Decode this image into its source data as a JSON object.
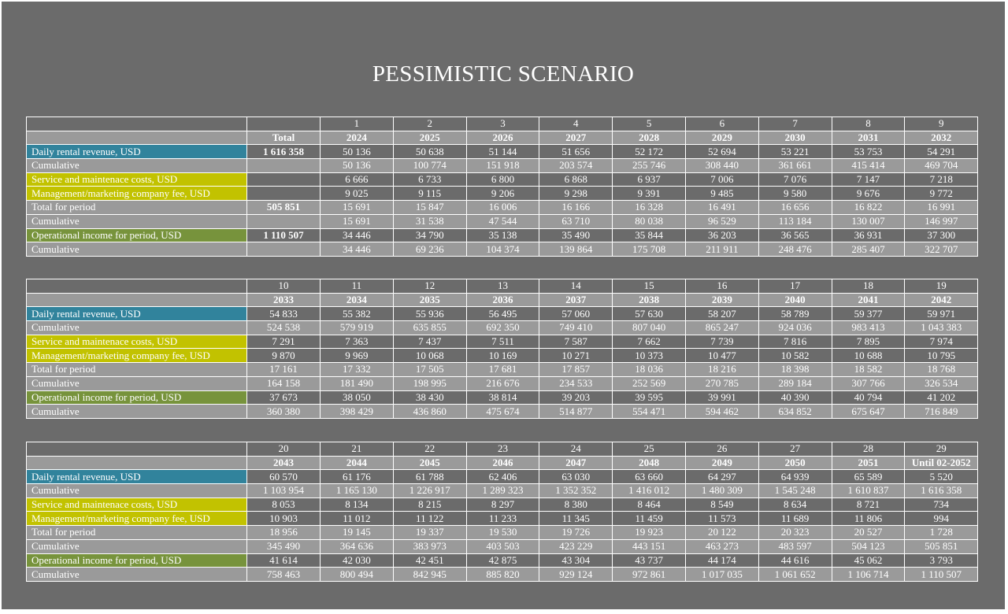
{
  "title": "PESSIMISTIC SCENARIO",
  "total_header": "Total",
  "row_labels": [
    "Daily rental revenue, USD",
    "Cumulative",
    "Service and maintenace costs, USD",
    "Management/marketing company fee, USD",
    "Total for period",
    "Cumulative",
    "Operational income for period, USD",
    "Cumulative"
  ],
  "totals": [
    "1 616 358",
    "",
    "",
    "",
    "505 851",
    "",
    "1 110 507",
    ""
  ],
  "colors": {
    "background": "#6b6b6b",
    "grey_row": "#9a9a9a",
    "blue": "#31839c",
    "yellow": "#c2c200",
    "green": "#77933c"
  },
  "tables": [
    {
      "numbers": [
        "1",
        "2",
        "3",
        "4",
        "5",
        "6",
        "7",
        "8",
        "9"
      ],
      "years": [
        "2024",
        "2025",
        "2026",
        "2027",
        "2028",
        "2029",
        "2030",
        "2031",
        "2032"
      ],
      "rows": [
        [
          "50 136",
          "50 638",
          "51 144",
          "51 656",
          "52 172",
          "52 694",
          "53 221",
          "53 753",
          "54 291"
        ],
        [
          "50 136",
          "100 774",
          "151 918",
          "203 574",
          "255 746",
          "308 440",
          "361 661",
          "415 414",
          "469 704"
        ],
        [
          "6 666",
          "6 733",
          "6 800",
          "6 868",
          "6 937",
          "7 006",
          "7 076",
          "7 147",
          "7 218"
        ],
        [
          "9 025",
          "9 115",
          "9 206",
          "9 298",
          "9 391",
          "9 485",
          "9 580",
          "9 676",
          "9 772"
        ],
        [
          "15 691",
          "15 847",
          "16 006",
          "16 166",
          "16 328",
          "16 491",
          "16 656",
          "16 822",
          "16 991"
        ],
        [
          "15 691",
          "31 538",
          "47 544",
          "63 710",
          "80 038",
          "96 529",
          "113 184",
          "130 007",
          "146 997"
        ],
        [
          "34 446",
          "34 790",
          "35 138",
          "35 490",
          "35 844",
          "36 203",
          "36 565",
          "36 931",
          "37 300"
        ],
        [
          "34 446",
          "69 236",
          "104 374",
          "139 864",
          "175 708",
          "211 911",
          "248 476",
          "285 407",
          "322 707"
        ]
      ]
    },
    {
      "numbers": [
        "10",
        "11",
        "12",
        "13",
        "14",
        "15",
        "16",
        "17",
        "18",
        "19"
      ],
      "years": [
        "2033",
        "2034",
        "2035",
        "2036",
        "2037",
        "2038",
        "2039",
        "2040",
        "2041",
        "2042"
      ],
      "rows": [
        [
          "54 833",
          "55 382",
          "55 936",
          "56 495",
          "57 060",
          "57 630",
          "58 207",
          "58 789",
          "59 377",
          "59 971"
        ],
        [
          "524 538",
          "579 919",
          "635 855",
          "692 350",
          "749 410",
          "807 040",
          "865 247",
          "924 036",
          "983 413",
          "1 043 383"
        ],
        [
          "7 291",
          "7 363",
          "7 437",
          "7 511",
          "7 587",
          "7 662",
          "7 739",
          "7 816",
          "7 895",
          "7 974"
        ],
        [
          "9 870",
          "9 969",
          "10 068",
          "10 169",
          "10 271",
          "10 373",
          "10 477",
          "10 582",
          "10 688",
          "10 795"
        ],
        [
          "17 161",
          "17 332",
          "17 505",
          "17 681",
          "17 857",
          "18 036",
          "18 216",
          "18 398",
          "18 582",
          "18 768"
        ],
        [
          "164 158",
          "181 490",
          "198 995",
          "216 676",
          "234 533",
          "252 569",
          "270 785",
          "289 184",
          "307 766",
          "326 534"
        ],
        [
          "37 673",
          "38 050",
          "38 430",
          "38 814",
          "39 203",
          "39 595",
          "39 991",
          "40 390",
          "40 794",
          "41 202"
        ],
        [
          "360 380",
          "398 429",
          "436 860",
          "475 674",
          "514 877",
          "554 471",
          "594 462",
          "634 852",
          "675 647",
          "716 849"
        ]
      ]
    },
    {
      "numbers": [
        "20",
        "21",
        "22",
        "23",
        "24",
        "25",
        "26",
        "27",
        "28",
        "29"
      ],
      "years": [
        "2043",
        "2044",
        "2045",
        "2046",
        "2047",
        "2048",
        "2049",
        "2050",
        "2051",
        "Until 02-2052"
      ],
      "rows": [
        [
          "60 570",
          "61 176",
          "61 788",
          "62 406",
          "63 030",
          "63 660",
          "64 297",
          "64 939",
          "65 589",
          "5 520"
        ],
        [
          "1 103 954",
          "1 165 130",
          "1 226 917",
          "1 289 323",
          "1 352 352",
          "1 416 012",
          "1 480 309",
          "1 545 248",
          "1 610 837",
          "1 616 358"
        ],
        [
          "8 053",
          "8 134",
          "8 215",
          "8 297",
          "8 380",
          "8 464",
          "8 549",
          "8 634",
          "8 721",
          "734"
        ],
        [
          "10 903",
          "11 012",
          "11 122",
          "11 233",
          "11 345",
          "11 459",
          "11 573",
          "11 689",
          "11 806",
          "994"
        ],
        [
          "18 956",
          "19 145",
          "19 337",
          "19 530",
          "19 726",
          "19 923",
          "20 122",
          "20 323",
          "20 527",
          "1 728"
        ],
        [
          "345 490",
          "364 636",
          "383 973",
          "403 503",
          "423 229",
          "443 151",
          "463 273",
          "483 597",
          "504 123",
          "505 851"
        ],
        [
          "41 614",
          "42 030",
          "42 451",
          "42 875",
          "43 304",
          "43 737",
          "44 174",
          "44 616",
          "45 062",
          "3 793"
        ],
        [
          "758 463",
          "800 494",
          "842 945",
          "885 820",
          "929 124",
          "972 861",
          "1 017 035",
          "1 061 652",
          "1 106 714",
          "1 110 507"
        ]
      ]
    }
  ]
}
